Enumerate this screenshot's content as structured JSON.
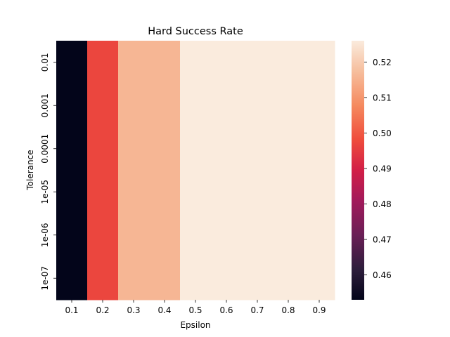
{
  "chart_data": {
    "type": "heatmap",
    "title": "Hard Success Rate",
    "xlabel": "Epsilon",
    "ylabel": "Tolerance",
    "x_categories": [
      "0.1",
      "0.2",
      "0.3",
      "0.4",
      "0.5",
      "0.6",
      "0.7",
      "0.8",
      "0.9"
    ],
    "y_categories": [
      "0.01",
      "0.001",
      "0.0001",
      "1e-05",
      "1e-06",
      "1e-07"
    ],
    "values": [
      [
        0.453,
        0.497,
        0.516,
        0.516,
        0.526,
        0.526,
        0.526,
        0.526,
        0.526
      ],
      [
        0.453,
        0.497,
        0.516,
        0.516,
        0.526,
        0.526,
        0.526,
        0.526,
        0.526
      ],
      [
        0.453,
        0.497,
        0.516,
        0.516,
        0.526,
        0.526,
        0.526,
        0.526,
        0.526
      ],
      [
        0.453,
        0.497,
        0.516,
        0.516,
        0.526,
        0.526,
        0.526,
        0.526,
        0.526
      ],
      [
        0.453,
        0.497,
        0.516,
        0.516,
        0.526,
        0.526,
        0.526,
        0.526,
        0.526
      ],
      [
        0.453,
        0.497,
        0.516,
        0.516,
        0.526,
        0.526,
        0.526,
        0.526,
        0.526
      ]
    ],
    "colorbar": {
      "range": [
        0.453,
        0.526
      ],
      "ticks": [
        0.46,
        0.47,
        0.48,
        0.49,
        0.5,
        0.51,
        0.52
      ],
      "tick_labels": [
        "0.46",
        "0.47",
        "0.48",
        "0.49",
        "0.50",
        "0.51",
        "0.52"
      ],
      "colormap": "rocket"
    },
    "grid": false
  }
}
